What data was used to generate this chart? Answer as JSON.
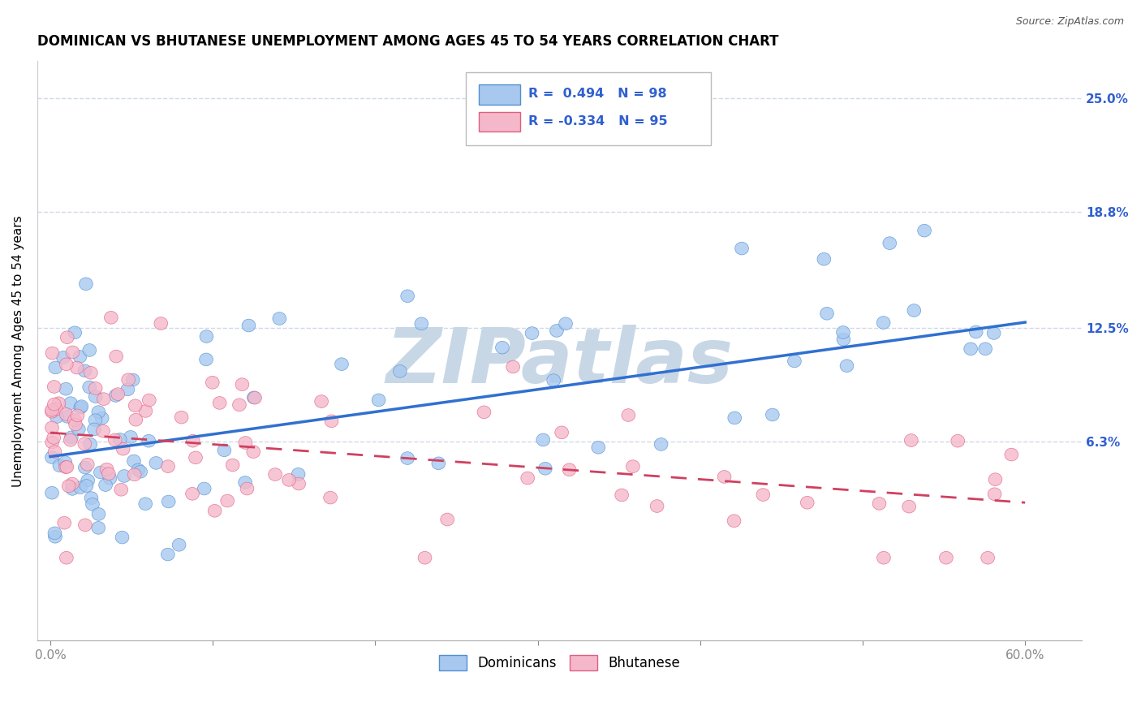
{
  "title": "DOMINICAN VS BHUTANESE UNEMPLOYMENT AMONG AGES 45 TO 54 YEARS CORRELATION CHART",
  "source": "Source: ZipAtlas.com",
  "ylabel": "Unemployment Among Ages 45 to 54 years",
  "xlabel_ticks_labels": [
    "0.0%",
    "60.0%"
  ],
  "xlabel_ticks_vals": [
    0.0,
    0.6
  ],
  "ylabel_ticks": [
    "6.3%",
    "12.5%",
    "18.8%",
    "25.0%"
  ],
  "ylabel_vals": [
    0.063,
    0.125,
    0.188,
    0.25
  ],
  "xlim": [
    -0.008,
    0.635
  ],
  "ylim": [
    -0.045,
    0.27
  ],
  "dominican_color": "#a8c8f0",
  "bhutanese_color": "#f5b8cb",
  "dominican_edge_color": "#5090d0",
  "bhutanese_edge_color": "#e06080",
  "dominican_line_color": "#3070d0",
  "bhutanese_line_color": "#d04060",
  "bhutanese_line_dash": true,
  "R_dominican": 0.494,
  "N_dominican": 98,
  "R_bhutanese": -0.334,
  "N_bhutanese": 95,
  "legend_color": "#3060d0",
  "background_color": "#ffffff",
  "grid_color": "#d0d8e8",
  "watermark": "ZIPatlas",
  "watermark_color_r": 200,
  "watermark_color_g": 215,
  "watermark_color_b": 230,
  "title_fontsize": 12,
  "axis_label_fontsize": 11,
  "tick_fontsize": 11,
  "right_tick_color": "#3060d0",
  "dom_line_y0": 0.055,
  "dom_line_y1": 0.128,
  "bhu_line_y0": 0.068,
  "bhu_line_y1": 0.03
}
